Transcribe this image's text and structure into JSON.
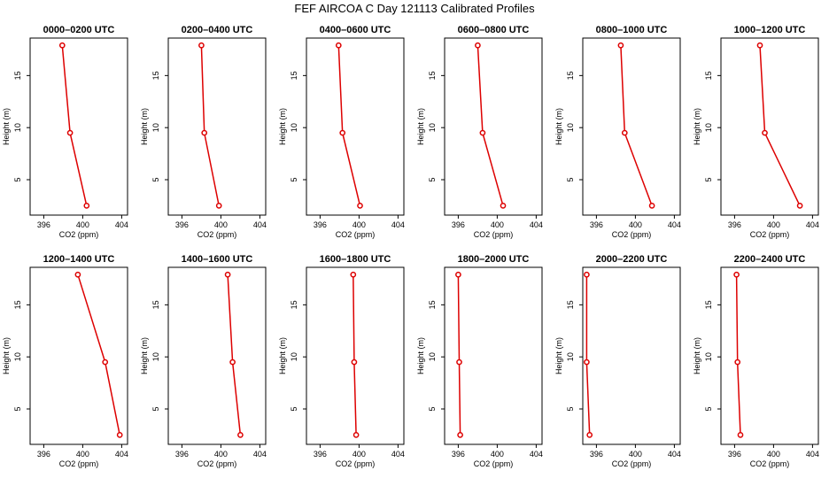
{
  "title": "FEF AIRCOA C  Day 121113  Calibrated Profiles",
  "colors": {
    "series": "#dd0000",
    "axis": "#000000",
    "text": "#000000"
  },
  "chart_data": {
    "type": "line",
    "xlabel": "CO2 (ppm)",
    "ylabel": "Height (m)",
    "xlim": [
      394.6,
      404.6
    ],
    "ylim": [
      1.6,
      18.6
    ],
    "xticks": [
      396,
      400,
      404
    ],
    "yticks": [
      5,
      10,
      15
    ],
    "heights": [
      17.9,
      9.5,
      2.5
    ],
    "panels": [
      {
        "title": "0000–0200 UTC",
        "co2": [
          397.9,
          398.7,
          400.4
        ]
      },
      {
        "title": "0200–0400 UTC",
        "co2": [
          398.0,
          398.3,
          399.8
        ]
      },
      {
        "title": "0400–0600 UTC",
        "co2": [
          397.9,
          398.3,
          400.1
        ]
      },
      {
        "title": "0600–0800 UTC",
        "co2": [
          398.0,
          398.5,
          400.6
        ]
      },
      {
        "title": "0800–1000 UTC",
        "co2": [
          398.5,
          398.9,
          401.7
        ]
      },
      {
        "title": "1000–1200 UTC",
        "co2": [
          398.6,
          399.1,
          402.7
        ]
      },
      {
        "title": "1200–1400 UTC",
        "co2": [
          399.5,
          402.3,
          403.8
        ]
      },
      {
        "title": "1400–1600 UTC",
        "co2": [
          400.7,
          401.2,
          402.0
        ]
      },
      {
        "title": "1600–1800 UTC",
        "co2": [
          399.4,
          399.5,
          399.7
        ]
      },
      {
        "title": "1800–2000 UTC",
        "co2": [
          396.0,
          396.1,
          396.2
        ]
      },
      {
        "title": "2000–2200 UTC",
        "co2": [
          395.0,
          395.0,
          395.3
        ]
      },
      {
        "title": "2200–2400 UTC",
        "co2": [
          396.2,
          396.3,
          396.6
        ]
      }
    ]
  }
}
